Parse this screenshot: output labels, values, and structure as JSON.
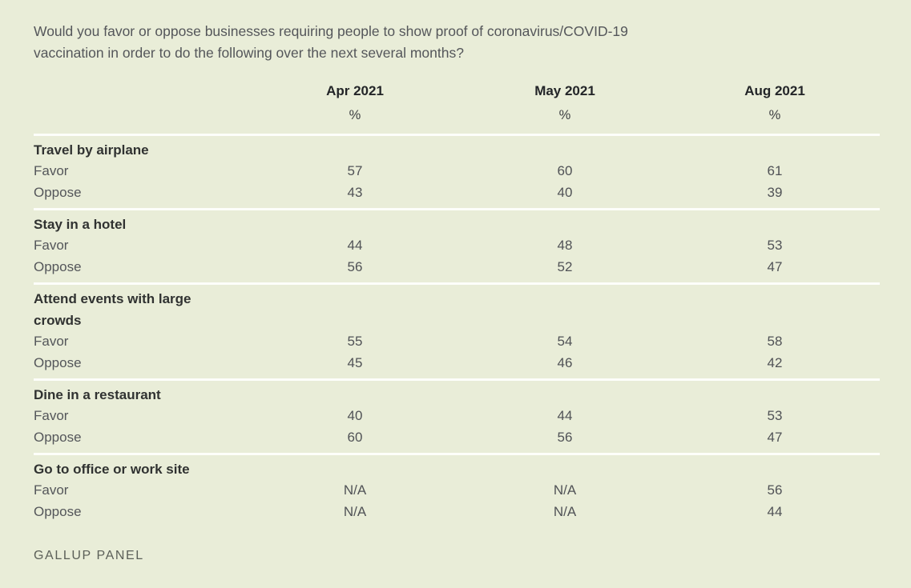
{
  "colors": {
    "background": "#e9edd8",
    "divider": "#fdfefa",
    "heading_text": "#303231",
    "body_text": "#54565a"
  },
  "chart_data": {
    "type": "table",
    "title": "Would you favor or oppose businesses requiring people to show proof of coronavirus/COVID-19 vaccination in order to do the following over the next several months?",
    "title_lines": [
      "Would you favor or oppose businesses requiring people to show proof of coronavirus/COVID-19",
      "vaccination in order to do the following over the next several months?"
    ],
    "columns": [
      "Apr 2021",
      "May 2021",
      "Aug 2021"
    ],
    "unit": "%",
    "groups": [
      {
        "label": "Travel by airplane",
        "rows": [
          {
            "name": "Favor",
            "values": [
              "57",
              "60",
              "61"
            ]
          },
          {
            "name": "Oppose",
            "values": [
              "43",
              "40",
              "39"
            ]
          }
        ]
      },
      {
        "label": "Stay in a hotel",
        "rows": [
          {
            "name": "Favor",
            "values": [
              "44",
              "48",
              "53"
            ]
          },
          {
            "name": "Oppose",
            "values": [
              "56",
              "52",
              "47"
            ]
          }
        ]
      },
      {
        "label": "Attend events with large crowds",
        "rows": [
          {
            "name": "Favor",
            "values": [
              "55",
              "54",
              "58"
            ]
          },
          {
            "name": "Oppose",
            "values": [
              "45",
              "46",
              "42"
            ]
          }
        ]
      },
      {
        "label": "Dine in a restaurant",
        "rows": [
          {
            "name": "Favor",
            "values": [
              "40",
              "44",
              "53"
            ]
          },
          {
            "name": "Oppose",
            "values": [
              "60",
              "56",
              "47"
            ]
          }
        ]
      },
      {
        "label": "Go to office or work site",
        "rows": [
          {
            "name": "Favor",
            "values": [
              "N/A",
              "N/A",
              "56"
            ]
          },
          {
            "name": "Oppose",
            "values": [
              "N/A",
              "N/A",
              "44"
            ]
          }
        ]
      }
    ],
    "source": "GALLUP PANEL"
  }
}
